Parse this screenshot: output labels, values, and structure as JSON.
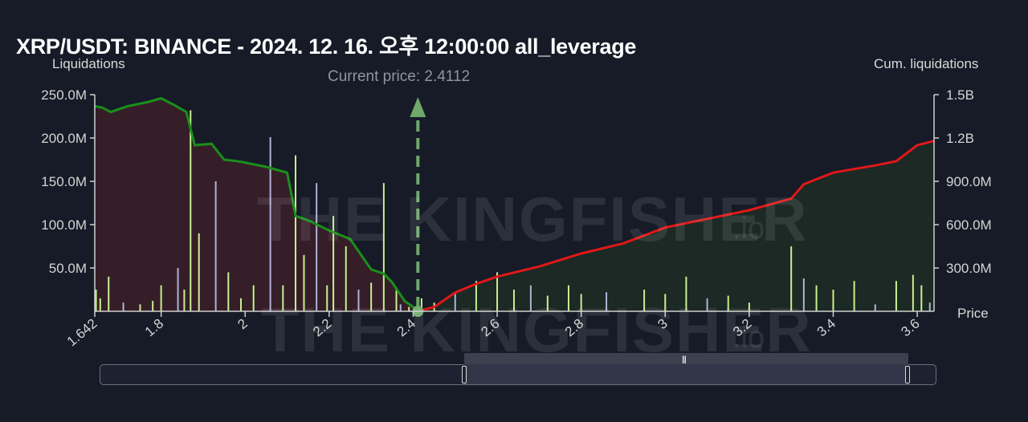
{
  "header": {
    "title": "XRP/USDT: BINANCE - 2024. 12. 16. 오후 12:00:00 all_leverage",
    "left_axis_title": "Liquidations",
    "right_axis_title": "Cum. liquidations",
    "x_axis_title": "Price",
    "current_price_label": "Current price: 2.4112"
  },
  "watermark": {
    "text": "THE KINGFISHER",
    "suffix": ".io"
  },
  "colors": {
    "background": "#161b27",
    "short_fill": "#3a1f29",
    "long_fill": "#1c2a24",
    "short_cum_line": "#1a8f1a",
    "long_cum_line": "#e01818",
    "bars": "#c7f08f",
    "bars_alt": "#aeb3d6",
    "current_price_marker": "#6fa86a"
  },
  "chart_data": {
    "type": "bar",
    "x_axis": {
      "label": "Price",
      "range": [
        1.642,
        3.64
      ],
      "ticks": [
        "1.642",
        "1.8",
        "2",
        "2.2",
        "2.4",
        "2.6",
        "2.8",
        "3",
        "3.2",
        "3.4",
        "3.6"
      ]
    },
    "y_left": {
      "label": "Liquidations",
      "range": [
        0,
        250000000
      ],
      "ticks": [
        "250.0M",
        "200.0M",
        "150.0M",
        "100.0M",
        "50.0M"
      ]
    },
    "y_right": {
      "label": "Cum. liquidations",
      "range": [
        0,
        1500000000
      ],
      "ticks": [
        "1.5B",
        "1.2B",
        "900.0M",
        "600.0M",
        "300.0M"
      ]
    },
    "current_price": 2.4112,
    "series": [
      {
        "kind": "cumulative",
        "axis": "right",
        "side": "below-current-price",
        "x": [
          1.642,
          1.66,
          1.68,
          1.72,
          1.77,
          1.8,
          1.83,
          1.86,
          1.88,
          1.92,
          1.95,
          1.98,
          2.0,
          2.05,
          2.1,
          2.12,
          2.15,
          2.2,
          2.25,
          2.3,
          2.33,
          2.35,
          2.38,
          2.4,
          2.4112
        ],
        "y": [
          1420000000,
          1410000000,
          1380000000,
          1420000000,
          1450000000,
          1475000000,
          1430000000,
          1380000000,
          1150000000,
          1160000000,
          1050000000,
          1040000000,
          1030000000,
          1000000000,
          960000000,
          660000000,
          630000000,
          560000000,
          500000000,
          290000000,
          260000000,
          200000000,
          70000000,
          30000000,
          0
        ]
      },
      {
        "kind": "cumulative",
        "axis": "right",
        "side": "above-current-price",
        "x": [
          2.4112,
          2.45,
          2.5,
          2.55,
          2.6,
          2.7,
          2.8,
          2.9,
          3.0,
          3.1,
          3.2,
          3.3,
          3.33,
          3.4,
          3.5,
          3.55,
          3.6,
          3.64
        ],
        "y": [
          0,
          30000000,
          130000000,
          190000000,
          240000000,
          310000000,
          400000000,
          470000000,
          580000000,
          640000000,
          700000000,
          780000000,
          880000000,
          960000000,
          1010000000,
          1040000000,
          1150000000,
          1180000000
        ]
      },
      {
        "kind": "liquidation-bars",
        "axis": "left",
        "x": [
          1.645,
          1.655,
          1.675,
          1.71,
          1.75,
          1.78,
          1.8,
          1.84,
          1.855,
          1.87,
          1.89,
          1.93,
          1.96,
          1.99,
          2.02,
          2.06,
          2.09,
          2.12,
          2.14,
          2.17,
          2.195,
          2.21,
          2.24,
          2.27,
          2.3,
          2.33,
          2.36,
          2.37,
          2.39,
          2.42,
          2.45,
          2.5,
          2.55,
          2.6,
          2.64,
          2.68,
          2.72,
          2.77,
          2.8,
          2.86,
          2.95,
          3.0,
          3.05,
          3.1,
          3.15,
          3.2,
          3.3,
          3.33,
          3.36,
          3.4,
          3.45,
          3.5,
          3.55,
          3.59,
          3.61,
          3.63
        ],
        "y": [
          25000000,
          15000000,
          40000000,
          10000000,
          8000000,
          12000000,
          30000000,
          50000000,
          25000000,
          232000000,
          90000000,
          150000000,
          45000000,
          15000000,
          30000000,
          201000000,
          30000000,
          180000000,
          65000000,
          148000000,
          30000000,
          110000000,
          75000000,
          25000000,
          33000000,
          148000000,
          25000000,
          8000000,
          5000000,
          15000000,
          10000000,
          20000000,
          35000000,
          45000000,
          25000000,
          30000000,
          18000000,
          30000000,
          20000000,
          22000000,
          25000000,
          20000000,
          40000000,
          15000000,
          18000000,
          10000000,
          75000000,
          38000000,
          30000000,
          25000000,
          35000000,
          8000000,
          35000000,
          42000000,
          30000000,
          10000000
        ]
      }
    ],
    "grid": false,
    "legend": "none"
  },
  "navigator": {
    "grip": "|||"
  }
}
